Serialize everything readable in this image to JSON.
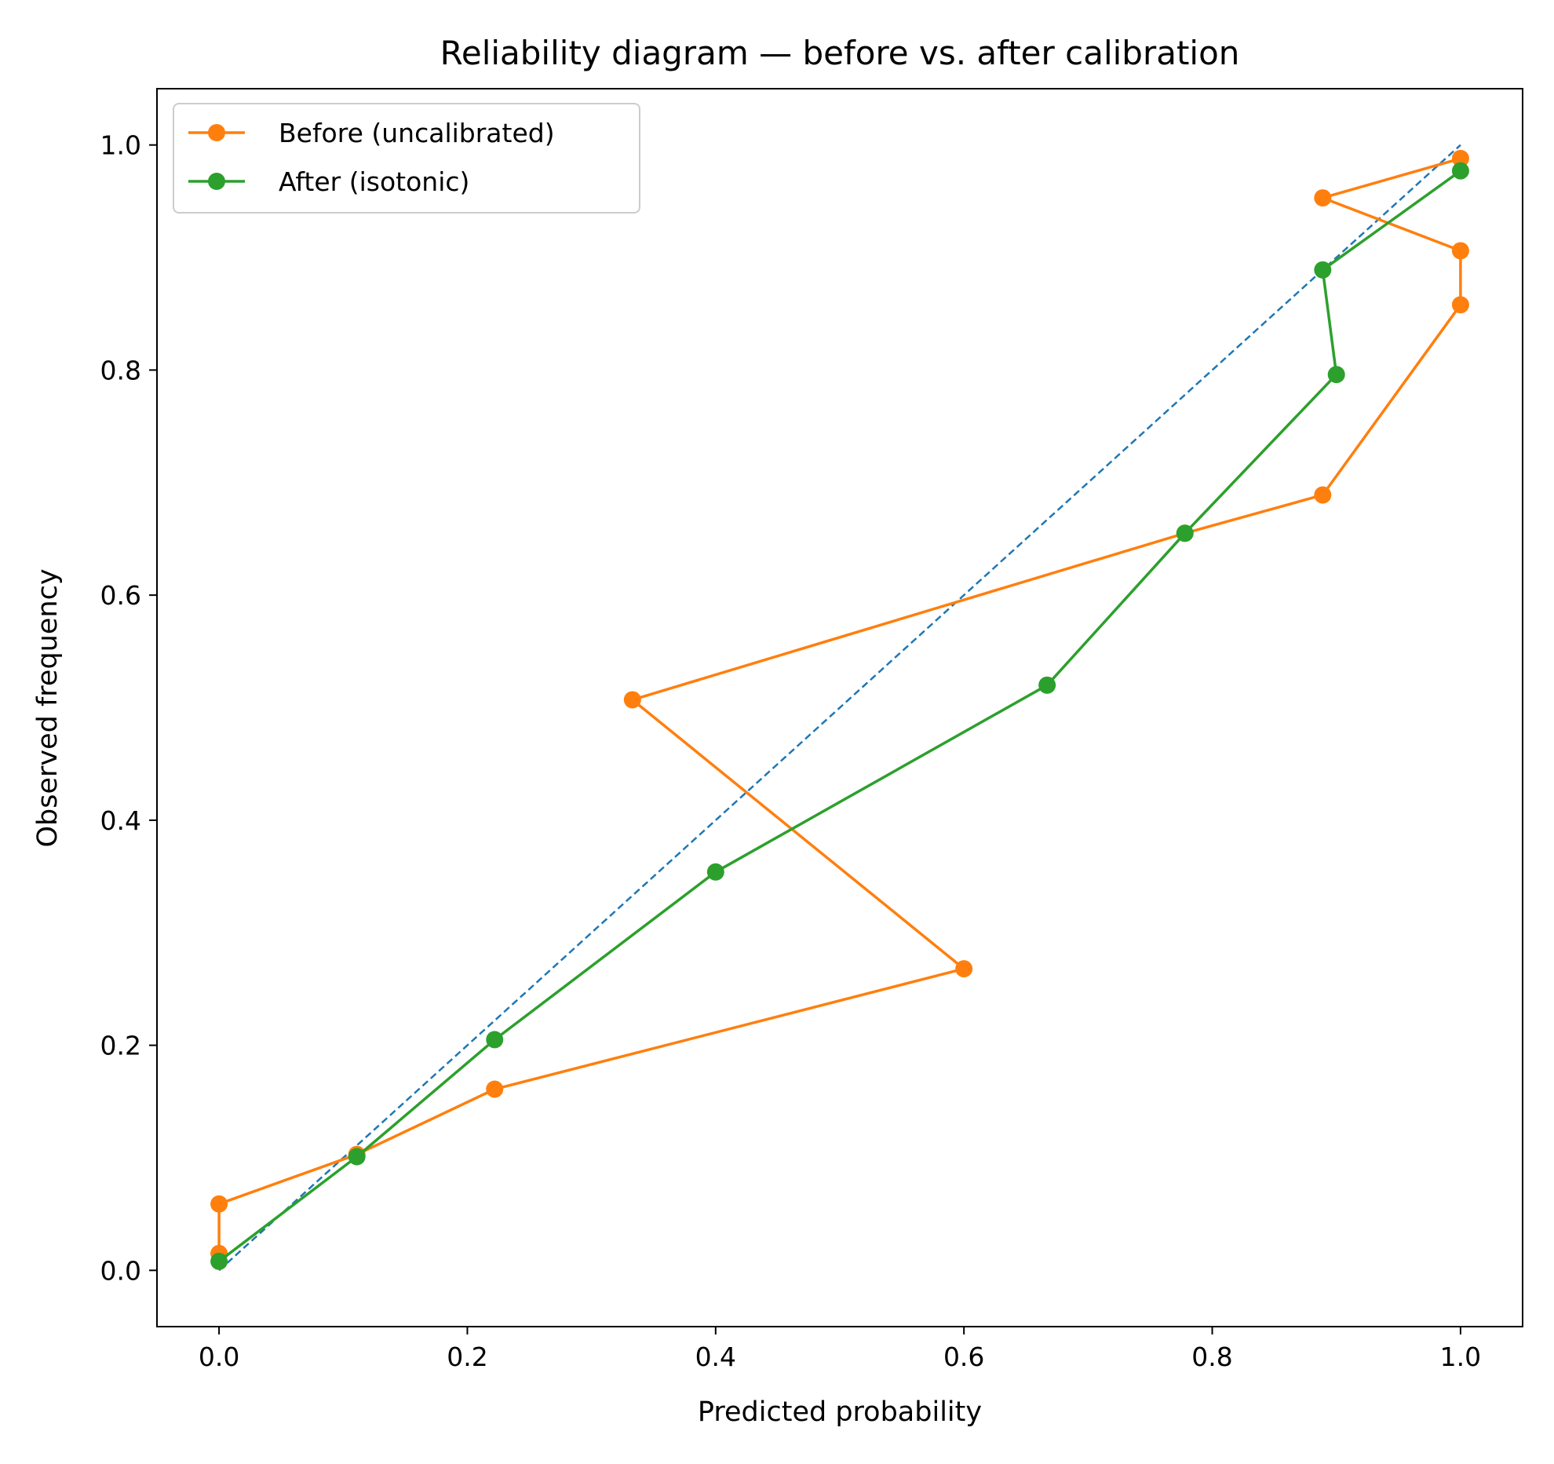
{
  "chart_data": {
    "type": "line",
    "title": "Reliability diagram — before vs. after calibration",
    "xlabel": "Predicted probability",
    "ylabel": "Observed frequency",
    "xlim": [
      -0.05,
      1.05
    ],
    "ylim": [
      -0.05,
      1.05
    ],
    "xticks": [
      0.0,
      0.2,
      0.4,
      0.6,
      0.8,
      1.0
    ],
    "yticks": [
      0.0,
      0.2,
      0.4,
      0.6,
      0.8,
      1.0
    ],
    "xtick_labels": [
      "0.0",
      "0.2",
      "0.4",
      "0.6",
      "0.8",
      "1.0"
    ],
    "ytick_labels": [
      "0.0",
      "0.2",
      "0.4",
      "0.6",
      "0.8",
      "1.0"
    ],
    "grid": false,
    "legend_position": "top-left",
    "reference_line": {
      "x": [
        0.0,
        1.0
      ],
      "y": [
        0.0,
        1.0
      ],
      "style": "dashed",
      "color": "#1f77b4"
    },
    "series": [
      {
        "name": "Before (uncalibrated)",
        "color": "#ff7f0e",
        "x": [
          0.0,
          0.0,
          0.111,
          0.222,
          0.6,
          0.333,
          0.778,
          0.889,
          1.0,
          1.0,
          0.889,
          1.0
        ],
        "y": [
          0.015,
          0.059,
          0.103,
          0.161,
          0.268,
          0.507,
          0.655,
          0.689,
          0.858,
          0.906,
          0.953,
          0.988
        ]
      },
      {
        "name": "After (isotonic)",
        "color": "#2ca02c",
        "x": [
          0.0,
          0.111,
          0.222,
          0.4,
          0.667,
          0.778,
          0.9,
          0.889,
          1.0
        ],
        "y": [
          0.008,
          0.101,
          0.205,
          0.354,
          0.52,
          0.655,
          0.796,
          0.889,
          0.977
        ]
      }
    ]
  }
}
